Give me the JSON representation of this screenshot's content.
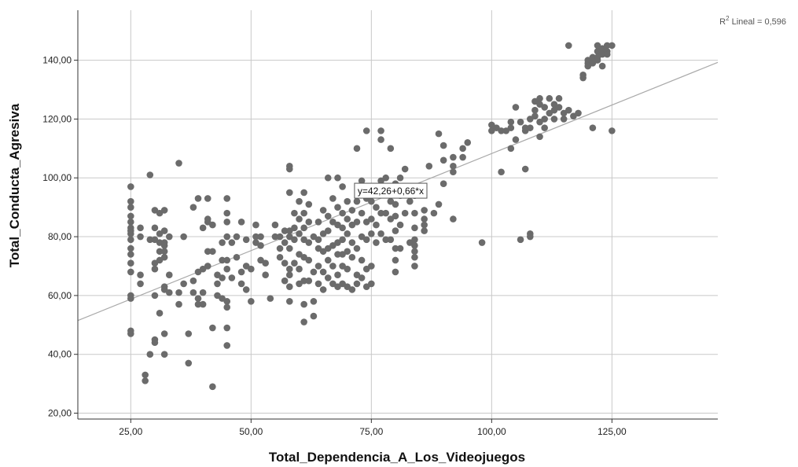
{
  "chart_data": {
    "type": "scatter",
    "title": "",
    "xlabel": "Total_Dependencia_A_Los_Videojuegos",
    "ylabel": "Total_Conducta_Agresiva",
    "xlim": [
      14,
      147
    ],
    "ylim": [
      18,
      157
    ],
    "xticks": [
      25,
      50,
      75,
      100,
      125
    ],
    "yticks": [
      20,
      40,
      60,
      80,
      100,
      120,
      140
    ],
    "xtick_labels": [
      "25,00",
      "50,00",
      "75,00",
      "100,00",
      "125,00"
    ],
    "ytick_labels": [
      "20,00",
      "40,00",
      "60,00",
      "80,00",
      "100,00",
      "120,00",
      "140,00"
    ],
    "grid": true,
    "colors": {
      "points": "#6b6b6b",
      "fit_line": "#a9a9a9",
      "grid": "#c8c8c8",
      "axis": "#333333"
    },
    "fit": {
      "intercept": 42.26,
      "slope": 0.66,
      "equation_label": "y=42,26+0,66*x",
      "label_at": [
        71.5,
        95.5
      ]
    },
    "r2_label": {
      "prefix": "R",
      "sup": "2",
      "suffix": " Lineal = 0,596"
    },
    "points": [
      [
        25,
        97
      ],
      [
        25,
        92
      ],
      [
        25,
        90
      ],
      [
        25,
        87
      ],
      [
        25,
        85
      ],
      [
        25,
        83
      ],
      [
        25,
        82
      ],
      [
        25,
        81
      ],
      [
        25,
        79
      ],
      [
        25,
        76
      ],
      [
        25,
        74
      ],
      [
        25,
        71
      ],
      [
        25,
        68
      ],
      [
        25,
        60
      ],
      [
        25,
        59
      ],
      [
        25,
        48
      ],
      [
        25,
        47
      ],
      [
        27,
        83
      ],
      [
        27,
        80
      ],
      [
        27,
        67
      ],
      [
        27,
        64
      ],
      [
        28,
        33
      ],
      [
        28,
        31
      ],
      [
        29,
        101
      ],
      [
        29,
        79
      ],
      [
        29,
        40
      ],
      [
        30,
        89
      ],
      [
        30,
        83
      ],
      [
        30,
        79
      ],
      [
        30,
        71
      ],
      [
        30,
        69
      ],
      [
        30,
        60
      ],
      [
        30,
        45
      ],
      [
        30,
        44
      ],
      [
        31,
        88
      ],
      [
        31,
        81
      ],
      [
        31,
        78
      ],
      [
        31,
        75
      ],
      [
        31,
        72
      ],
      [
        31,
        54
      ],
      [
        32,
        89
      ],
      [
        32,
        82
      ],
      [
        32,
        78
      ],
      [
        32,
        77
      ],
      [
        32,
        75
      ],
      [
        32,
        73
      ],
      [
        32,
        63
      ],
      [
        32,
        62
      ],
      [
        32,
        47
      ],
      [
        32,
        40
      ],
      [
        33,
        80
      ],
      [
        33,
        67
      ],
      [
        33,
        61
      ],
      [
        35,
        105
      ],
      [
        35,
        61
      ],
      [
        35,
        57
      ],
      [
        36,
        80
      ],
      [
        36,
        64
      ],
      [
        37,
        47
      ],
      [
        37,
        37
      ],
      [
        38,
        90
      ],
      [
        38,
        65
      ],
      [
        38,
        61
      ],
      [
        39,
        93
      ],
      [
        39,
        68
      ],
      [
        39,
        59
      ],
      [
        39,
        57
      ],
      [
        40,
        83
      ],
      [
        40,
        69
      ],
      [
        40,
        61
      ],
      [
        40,
        57
      ],
      [
        41,
        93
      ],
      [
        41,
        86
      ],
      [
        41,
        85
      ],
      [
        41,
        75
      ],
      [
        41,
        70
      ],
      [
        42,
        84
      ],
      [
        42,
        75
      ],
      [
        42,
        49
      ],
      [
        42,
        29
      ],
      [
        43,
        67
      ],
      [
        43,
        64
      ],
      [
        43,
        60
      ],
      [
        44,
        78
      ],
      [
        44,
        72
      ],
      [
        44,
        66
      ],
      [
        44,
        59
      ],
      [
        45,
        93
      ],
      [
        45,
        88
      ],
      [
        45,
        85
      ],
      [
        45,
        80
      ],
      [
        45,
        72
      ],
      [
        45,
        69
      ],
      [
        45,
        58
      ],
      [
        45,
        56
      ],
      [
        45,
        49
      ],
      [
        45,
        43
      ],
      [
        46,
        78
      ],
      [
        46,
        66
      ],
      [
        47,
        80
      ],
      [
        47,
        73
      ],
      [
        48,
        85
      ],
      [
        48,
        68
      ],
      [
        48,
        64
      ],
      [
        49,
        79
      ],
      [
        49,
        70
      ],
      [
        49,
        62
      ],
      [
        50,
        69
      ],
      [
        50,
        58
      ],
      [
        51,
        84
      ],
      [
        51,
        80
      ],
      [
        51,
        78
      ],
      [
        52,
        80
      ],
      [
        52,
        77
      ],
      [
        52,
        72
      ],
      [
        53,
        71
      ],
      [
        53,
        67
      ],
      [
        54,
        59
      ],
      [
        55,
        84
      ],
      [
        55,
        80
      ],
      [
        56,
        80
      ],
      [
        56,
        76
      ],
      [
        56,
        73
      ],
      [
        57,
        82
      ],
      [
        57,
        78
      ],
      [
        57,
        71
      ],
      [
        57,
        65
      ],
      [
        58,
        104
      ],
      [
        58,
        103
      ],
      [
        58,
        95
      ],
      [
        58,
        82
      ],
      [
        58,
        80
      ],
      [
        58,
        76
      ],
      [
        58,
        69
      ],
      [
        58,
        67
      ],
      [
        58,
        63
      ],
      [
        58,
        58
      ],
      [
        59,
        88
      ],
      [
        59,
        83
      ],
      [
        59,
        79
      ],
      [
        59,
        71
      ],
      [
        60,
        92
      ],
      [
        60,
        86
      ],
      [
        60,
        81
      ],
      [
        60,
        74
      ],
      [
        60,
        69
      ],
      [
        60,
        64
      ],
      [
        61,
        95
      ],
      [
        61,
        88
      ],
      [
        61,
        83
      ],
      [
        61,
        79
      ],
      [
        61,
        73
      ],
      [
        61,
        65
      ],
      [
        61,
        57
      ],
      [
        61,
        51
      ],
      [
        62,
        91
      ],
      [
        62,
        85
      ],
      [
        62,
        78
      ],
      [
        62,
        72
      ],
      [
        62,
        65
      ],
      [
        63,
        80
      ],
      [
        63,
        68
      ],
      [
        63,
        58
      ],
      [
        63,
        53
      ],
      [
        64,
        85
      ],
      [
        64,
        79
      ],
      [
        64,
        76
      ],
      [
        64,
        70
      ],
      [
        64,
        64
      ],
      [
        65,
        89
      ],
      [
        65,
        81
      ],
      [
        65,
        75
      ],
      [
        65,
        68
      ],
      [
        65,
        62
      ],
      [
        66,
        100
      ],
      [
        66,
        87
      ],
      [
        66,
        82
      ],
      [
        66,
        76
      ],
      [
        66,
        72
      ],
      [
        66,
        66
      ],
      [
        67,
        93
      ],
      [
        67,
        85
      ],
      [
        67,
        77
      ],
      [
        67,
        70
      ],
      [
        67,
        64
      ],
      [
        68,
        100
      ],
      [
        68,
        90
      ],
      [
        68,
        84
      ],
      [
        68,
        78
      ],
      [
        68,
        74
      ],
      [
        68,
        67
      ],
      [
        68,
        63
      ],
      [
        69,
        97
      ],
      [
        69,
        88
      ],
      [
        69,
        83
      ],
      [
        69,
        79
      ],
      [
        69,
        74
      ],
      [
        69,
        70
      ],
      [
        69,
        64
      ],
      [
        70,
        92
      ],
      [
        70,
        86
      ],
      [
        70,
        81
      ],
      [
        70,
        75
      ],
      [
        70,
        69
      ],
      [
        70,
        63
      ],
      [
        71,
        89
      ],
      [
        71,
        84
      ],
      [
        71,
        78
      ],
      [
        71,
        73
      ],
      [
        71,
        62
      ],
      [
        72,
        110
      ],
      [
        72,
        92
      ],
      [
        72,
        85
      ],
      [
        72,
        76
      ],
      [
        72,
        67
      ],
      [
        72,
        64
      ],
      [
        73,
        99
      ],
      [
        73,
        88
      ],
      [
        73,
        80
      ],
      [
        73,
        72
      ],
      [
        73,
        66
      ],
      [
        74,
        116
      ],
      [
        74,
        93
      ],
      [
        74,
        85
      ],
      [
        74,
        79
      ],
      [
        74,
        69
      ],
      [
        74,
        63
      ],
      [
        75,
        92
      ],
      [
        75,
        86
      ],
      [
        75,
        81
      ],
      [
        75,
        70
      ],
      [
        75,
        64
      ],
      [
        76,
        90
      ],
      [
        76,
        84
      ],
      [
        76,
        78
      ],
      [
        77,
        116
      ],
      [
        77,
        113
      ],
      [
        77,
        99
      ],
      [
        77,
        88
      ],
      [
        77,
        81
      ],
      [
        78,
        100
      ],
      [
        78,
        95
      ],
      [
        78,
        88
      ],
      [
        78,
        79
      ],
      [
        79,
        110
      ],
      [
        79,
        92
      ],
      [
        79,
        86
      ],
      [
        79,
        79
      ],
      [
        80,
        98
      ],
      [
        80,
        91
      ],
      [
        80,
        87
      ],
      [
        80,
        82
      ],
      [
        80,
        76
      ],
      [
        80,
        72
      ],
      [
        80,
        68
      ],
      [
        81,
        100
      ],
      [
        81,
        94
      ],
      [
        81,
        84
      ],
      [
        81,
        76
      ],
      [
        82,
        103
      ],
      [
        82,
        88
      ],
      [
        83,
        92
      ],
      [
        83,
        78
      ],
      [
        84,
        94
      ],
      [
        84,
        88
      ],
      [
        84,
        83
      ],
      [
        84,
        79
      ],
      [
        84,
        77
      ],
      [
        84,
        75
      ],
      [
        84,
        73
      ],
      [
        84,
        70
      ],
      [
        86,
        89
      ],
      [
        86,
        86
      ],
      [
        86,
        84
      ],
      [
        86,
        82
      ],
      [
        87,
        104
      ],
      [
        88,
        88
      ],
      [
        89,
        115
      ],
      [
        89,
        91
      ],
      [
        90,
        111
      ],
      [
        90,
        106
      ],
      [
        90,
        98
      ],
      [
        92,
        107
      ],
      [
        92,
        104
      ],
      [
        92,
        102
      ],
      [
        92,
        86
      ],
      [
        94,
        110
      ],
      [
        94,
        107
      ],
      [
        95,
        112
      ],
      [
        98,
        78
      ],
      [
        100,
        118
      ],
      [
        100,
        116
      ],
      [
        101,
        117
      ],
      [
        102,
        116
      ],
      [
        102,
        102
      ],
      [
        103,
        116
      ],
      [
        104,
        119
      ],
      [
        104,
        117
      ],
      [
        104,
        110
      ],
      [
        105,
        124
      ],
      [
        105,
        113
      ],
      [
        106,
        119
      ],
      [
        106,
        79
      ],
      [
        107,
        117
      ],
      [
        107,
        116
      ],
      [
        107,
        103
      ],
      [
        108,
        120
      ],
      [
        108,
        117
      ],
      [
        108,
        81
      ],
      [
        108,
        80
      ],
      [
        109,
        126
      ],
      [
        109,
        123
      ],
      [
        109,
        121
      ],
      [
        110,
        127
      ],
      [
        110,
        125
      ],
      [
        110,
        119
      ],
      [
        110,
        114
      ],
      [
        111,
        124
      ],
      [
        111,
        120
      ],
      [
        111,
        117
      ],
      [
        112,
        127
      ],
      [
        112,
        122
      ],
      [
        113,
        125
      ],
      [
        113,
        123
      ],
      [
        113,
        120
      ],
      [
        114,
        127
      ],
      [
        114,
        124
      ],
      [
        115,
        122
      ],
      [
        115,
        120
      ],
      [
        116,
        145
      ],
      [
        116,
        123
      ],
      [
        117,
        121
      ],
      [
        118,
        122
      ],
      [
        119,
        134
      ],
      [
        119,
        135
      ],
      [
        120,
        139
      ],
      [
        120,
        140
      ],
      [
        120,
        138
      ],
      [
        121,
        141
      ],
      [
        121,
        139
      ],
      [
        121,
        117
      ],
      [
        122,
        145
      ],
      [
        122,
        143
      ],
      [
        122,
        141
      ],
      [
        122,
        140
      ],
      [
        123,
        144
      ],
      [
        123,
        143
      ],
      [
        123,
        142
      ],
      [
        123,
        138
      ],
      [
        124,
        145
      ],
      [
        124,
        143
      ],
      [
        124,
        142
      ],
      [
        125,
        145
      ],
      [
        125,
        116
      ]
    ]
  }
}
